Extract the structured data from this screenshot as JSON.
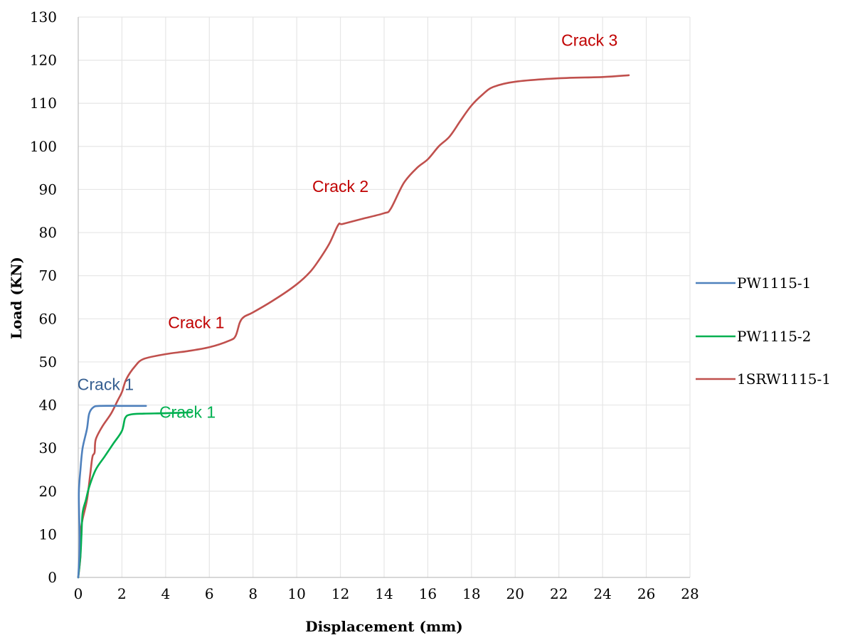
{
  "chart_data": {
    "type": "line",
    "title": "",
    "xlabel": "Displacement (mm)",
    "ylabel": "Load (KN)",
    "xlim": [
      0,
      28
    ],
    "ylim": [
      0,
      130
    ],
    "x_ticks": [
      0,
      2,
      4,
      6,
      8,
      10,
      12,
      14,
      16,
      18,
      20,
      22,
      24,
      26,
      28
    ],
    "y_ticks": [
      0,
      10,
      20,
      30,
      40,
      50,
      60,
      70,
      80,
      90,
      100,
      110,
      120,
      130
    ],
    "grid": true,
    "legend_position": "right",
    "series": [
      {
        "name": "PW1115-1",
        "color": "#4f81bd",
        "points": [
          [
            0,
            0
          ],
          [
            0.05,
            5
          ],
          [
            0.06,
            10
          ],
          [
            0.04,
            15
          ],
          [
            0.03,
            20
          ],
          [
            0.1,
            25
          ],
          [
            0.2,
            30
          ],
          [
            0.4,
            34.5
          ],
          [
            0.5,
            38
          ],
          [
            0.7,
            39.5
          ],
          [
            1.0,
            39.8
          ],
          [
            2.0,
            39.8
          ],
          [
            3.1,
            39.8
          ]
        ]
      },
      {
        "name": "PW1115-2",
        "color": "#00b050",
        "points": [
          [
            0,
            0
          ],
          [
            0.1,
            5
          ],
          [
            0.15,
            10
          ],
          [
            0.2,
            15
          ],
          [
            0.35,
            18
          ],
          [
            0.5,
            21
          ],
          [
            0.8,
            25
          ],
          [
            1.2,
            28
          ],
          [
            1.6,
            31
          ],
          [
            2.0,
            34
          ],
          [
            2.15,
            37
          ],
          [
            2.4,
            37.8
          ],
          [
            3.0,
            38
          ],
          [
            4.0,
            38.1
          ],
          [
            5.2,
            38.3
          ]
        ]
      },
      {
        "name": "1SRW1115-1",
        "color": "#c0504d",
        "points": [
          [
            0,
            0
          ],
          [
            0.1,
            5
          ],
          [
            0.1,
            10
          ],
          [
            0.2,
            13.5
          ],
          [
            0.4,
            18
          ],
          [
            0.55,
            24
          ],
          [
            0.65,
            28
          ],
          [
            0.75,
            29
          ],
          [
            0.8,
            32
          ],
          [
            1.1,
            35
          ],
          [
            1.5,
            38
          ],
          [
            1.8,
            41
          ],
          [
            2.0,
            43
          ],
          [
            2.2,
            46
          ],
          [
            2.6,
            49
          ],
          [
            3.0,
            50.7
          ],
          [
            4.0,
            51.8
          ],
          [
            5.0,
            52.5
          ],
          [
            6.0,
            53.4
          ],
          [
            6.9,
            54.9
          ],
          [
            7.2,
            56
          ],
          [
            7.4,
            59.2
          ],
          [
            7.6,
            60.5
          ],
          [
            8.0,
            61.5
          ],
          [
            9.0,
            64.5
          ],
          [
            10.0,
            68
          ],
          [
            10.6,
            70.8
          ],
          [
            11.0,
            73.5
          ],
          [
            11.5,
            77.5
          ],
          [
            11.9,
            81.8
          ],
          [
            12.1,
            82
          ],
          [
            13.0,
            83.2
          ],
          [
            14.0,
            84.5
          ],
          [
            14.3,
            85.5
          ],
          [
            14.9,
            91.5
          ],
          [
            15.5,
            95
          ],
          [
            16.0,
            97
          ],
          [
            16.5,
            100
          ],
          [
            17.0,
            102.3
          ],
          [
            17.5,
            106
          ],
          [
            18.0,
            109.5
          ],
          [
            18.5,
            112
          ],
          [
            19.0,
            113.8
          ],
          [
            20.0,
            115
          ],
          [
            22.0,
            115.8
          ],
          [
            24.0,
            116.1
          ],
          [
            25.2,
            116.5
          ]
        ]
      }
    ],
    "annotations": [
      {
        "text": "Crack 1",
        "x": 1.25,
        "y": 43.5,
        "color": "#365f91"
      },
      {
        "text": "Crack 1",
        "x": 5.0,
        "y": 37.0,
        "color": "#00b050"
      },
      {
        "text": "Crack 1",
        "x": 5.4,
        "y": 57.8,
        "color": "#c00000"
      },
      {
        "text": "Crack 2",
        "x": 12.0,
        "y": 89.4,
        "color": "#c00000"
      },
      {
        "text": "Crack 3",
        "x": 23.4,
        "y": 123.3,
        "color": "#c00000"
      }
    ]
  }
}
